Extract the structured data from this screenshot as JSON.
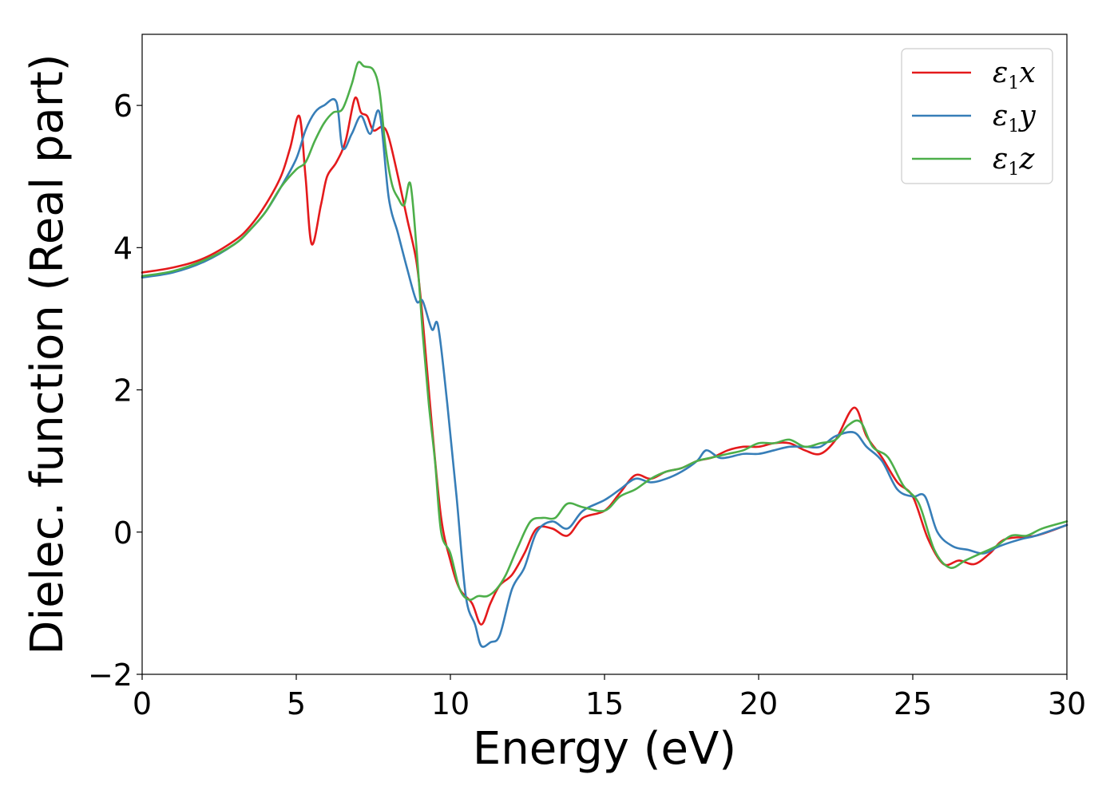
{
  "chart_data": {
    "type": "line",
    "title": "",
    "xlabel": "Energy (eV)",
    "ylabel": "Dielec. function (Real part)",
    "xlim": [
      0,
      30
    ],
    "ylim": [
      -2,
      7
    ],
    "xticks": [
      0,
      5,
      10,
      15,
      20,
      25,
      30
    ],
    "yticks": [
      -2,
      0,
      2,
      4,
      6
    ],
    "xtick_labels": [
      "0",
      "5",
      "10",
      "15",
      "20",
      "25",
      "30"
    ],
    "ytick_labels": [
      "−2",
      "0",
      "2",
      "4",
      "6"
    ],
    "grid": false,
    "legend_position": "top-right",
    "series": [
      {
        "name": "ε1x",
        "symbol": "ε",
        "subscript": "1",
        "suffix": "x",
        "color": "#e41a1c",
        "x": [
          0,
          1,
          2,
          3,
          3.5,
          4,
          4.5,
          4.8,
          5.1,
          5.3,
          5.5,
          5.8,
          6.0,
          6.3,
          6.6,
          6.9,
          7.1,
          7.3,
          7.5,
          7.8,
          8.0,
          8.3,
          8.6,
          8.9,
          9.1,
          9.4,
          9.7,
          10.0,
          10.3,
          10.7,
          11.0,
          11.3,
          11.6,
          12.0,
          12.4,
          12.8,
          13.3,
          13.8,
          14.3,
          15.0,
          15.5,
          16.0,
          16.5,
          17.0,
          17.5,
          18.0,
          18.5,
          19.0,
          19.5,
          20.0,
          20.5,
          21.0,
          21.5,
          22.0,
          22.5,
          23.1,
          23.5,
          24.0,
          24.5,
          25.0,
          25.5,
          26.0,
          26.5,
          27.0,
          27.5,
          28.0,
          29.0,
          30.0
        ],
        "y": [
          3.65,
          3.72,
          3.85,
          4.1,
          4.3,
          4.6,
          5.0,
          5.4,
          5.85,
          5.0,
          4.05,
          4.6,
          5.0,
          5.2,
          5.5,
          6.1,
          5.9,
          5.85,
          5.65,
          5.7,
          5.55,
          5.0,
          4.4,
          3.8,
          3.0,
          1.5,
          0.2,
          -0.4,
          -0.8,
          -1.0,
          -1.3,
          -1.0,
          -0.75,
          -0.6,
          -0.3,
          0.05,
          0.05,
          -0.05,
          0.2,
          0.3,
          0.55,
          0.8,
          0.75,
          0.85,
          0.9,
          1.0,
          1.05,
          1.15,
          1.2,
          1.2,
          1.25,
          1.25,
          1.15,
          1.1,
          1.3,
          1.75,
          1.35,
          1.05,
          0.7,
          0.5,
          -0.1,
          -0.45,
          -0.4,
          -0.45,
          -0.3,
          -0.1,
          -0.05,
          0.1
        ]
      },
      {
        "name": "ε1y",
        "symbol": "ε",
        "subscript": "1",
        "suffix": "y",
        "color": "#377eb8",
        "x": [
          0,
          1,
          2,
          3,
          3.5,
          4,
          4.5,
          5.0,
          5.3,
          5.6,
          5.9,
          6.3,
          6.5,
          6.8,
          7.1,
          7.4,
          7.7,
          8.0,
          8.3,
          8.6,
          8.9,
          9.1,
          9.4,
          9.6,
          9.9,
          10.2,
          10.5,
          10.8,
          11.0,
          11.3,
          11.6,
          12.0,
          12.4,
          12.8,
          13.3,
          13.8,
          14.3,
          15.0,
          15.5,
          16.0,
          16.5,
          17.0,
          17.5,
          18.0,
          18.3,
          18.7,
          19.0,
          19.5,
          20.0,
          20.5,
          21.0,
          21.5,
          22.0,
          22.5,
          23.1,
          23.5,
          24.0,
          24.5,
          25.0,
          25.4,
          25.8,
          26.3,
          26.8,
          27.3,
          27.8,
          28.5,
          29.0,
          30.0
        ],
        "y": [
          3.58,
          3.65,
          3.8,
          4.05,
          4.25,
          4.5,
          4.85,
          5.25,
          5.65,
          5.9,
          6.0,
          6.05,
          5.4,
          5.6,
          5.85,
          5.6,
          5.9,
          4.7,
          4.2,
          3.7,
          3.25,
          3.25,
          2.85,
          2.9,
          1.8,
          0.5,
          -0.9,
          -1.3,
          -1.6,
          -1.55,
          -1.45,
          -0.8,
          -0.5,
          0.0,
          0.15,
          0.05,
          0.3,
          0.45,
          0.6,
          0.75,
          0.7,
          0.75,
          0.85,
          1.0,
          1.15,
          1.05,
          1.05,
          1.1,
          1.1,
          1.15,
          1.2,
          1.2,
          1.2,
          1.35,
          1.4,
          1.2,
          1.0,
          0.6,
          0.5,
          0.5,
          0.0,
          -0.2,
          -0.25,
          -0.3,
          -0.2,
          -0.1,
          -0.05,
          0.1
        ]
      },
      {
        "name": "ε1z",
        "symbol": "ε",
        "subscript": "1",
        "suffix": "z",
        "color": "#4daf4a",
        "x": [
          0,
          1,
          2,
          3,
          3.5,
          4,
          4.5,
          5.0,
          5.3,
          5.6,
          5.9,
          6.2,
          6.5,
          6.8,
          7.0,
          7.2,
          7.5,
          7.7,
          7.9,
          8.1,
          8.3,
          8.5,
          8.7,
          8.9,
          9.1,
          9.3,
          9.5,
          9.7,
          10.0,
          10.3,
          10.6,
          10.9,
          11.2,
          11.5,
          11.8,
          12.2,
          12.6,
          13.0,
          13.4,
          13.8,
          14.3,
          15.0,
          15.5,
          16.0,
          16.5,
          17.0,
          17.5,
          18.0,
          18.5,
          19.0,
          19.5,
          20.0,
          20.5,
          21.0,
          21.5,
          22.0,
          22.5,
          22.9,
          23.3,
          23.7,
          24.2,
          24.7,
          25.2,
          25.7,
          26.2,
          26.7,
          27.2,
          27.7,
          28.2,
          28.7,
          29.2,
          30.0
        ],
        "y": [
          3.6,
          3.67,
          3.82,
          4.05,
          4.25,
          4.5,
          4.85,
          5.1,
          5.2,
          5.5,
          5.75,
          5.9,
          5.95,
          6.3,
          6.6,
          6.55,
          6.5,
          6.2,
          5.4,
          4.9,
          4.7,
          4.6,
          4.9,
          4.0,
          2.8,
          1.8,
          1.0,
          0.0,
          -0.3,
          -0.8,
          -0.95,
          -0.9,
          -0.9,
          -0.8,
          -0.6,
          -0.2,
          0.15,
          0.2,
          0.2,
          0.4,
          0.35,
          0.3,
          0.5,
          0.6,
          0.75,
          0.85,
          0.9,
          1.0,
          1.05,
          1.1,
          1.15,
          1.25,
          1.25,
          1.3,
          1.2,
          1.25,
          1.3,
          1.5,
          1.55,
          1.2,
          1.05,
          0.65,
          0.4,
          -0.25,
          -0.5,
          -0.4,
          -0.3,
          -0.2,
          -0.05,
          -0.05,
          0.05,
          0.15
        ]
      }
    ]
  }
}
